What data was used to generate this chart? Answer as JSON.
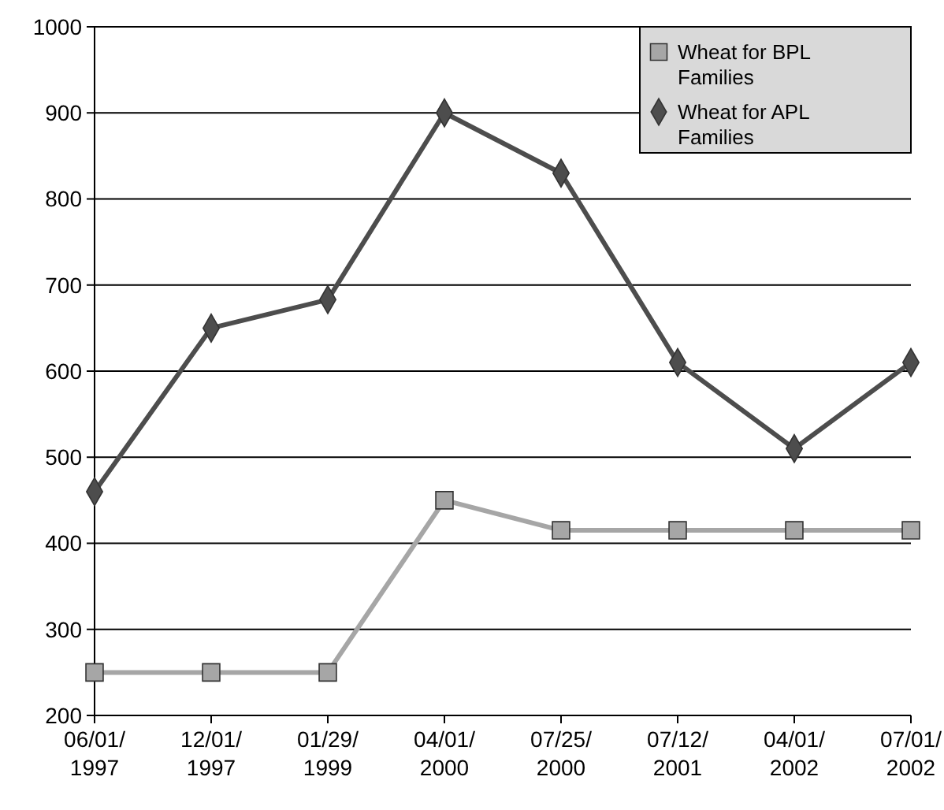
{
  "chart_data": {
    "type": "line",
    "categories": [
      "06/01/1997",
      "12/01/1997",
      "01/29/1999",
      "04/01/2000",
      "07/25/2000",
      "07/12/2001",
      "04/01/2002",
      "07/01/2002"
    ],
    "series": [
      {
        "name": "Wheat for BPL Families",
        "color": "#a6a6a6",
        "marker": "square",
        "values": [
          250,
          250,
          250,
          450,
          415,
          415,
          415,
          415
        ]
      },
      {
        "name": "Wheat for APL Families",
        "color": "#4d4d4d",
        "marker": "diamond",
        "values": [
          460,
          650,
          683,
          900,
          830,
          610,
          510,
          610
        ]
      }
    ],
    "ylim": [
      200,
      1000
    ],
    "yticks": [
      200,
      300,
      400,
      500,
      600,
      700,
      800,
      900,
      1000
    ],
    "grid": "y",
    "legend": "top right"
  }
}
